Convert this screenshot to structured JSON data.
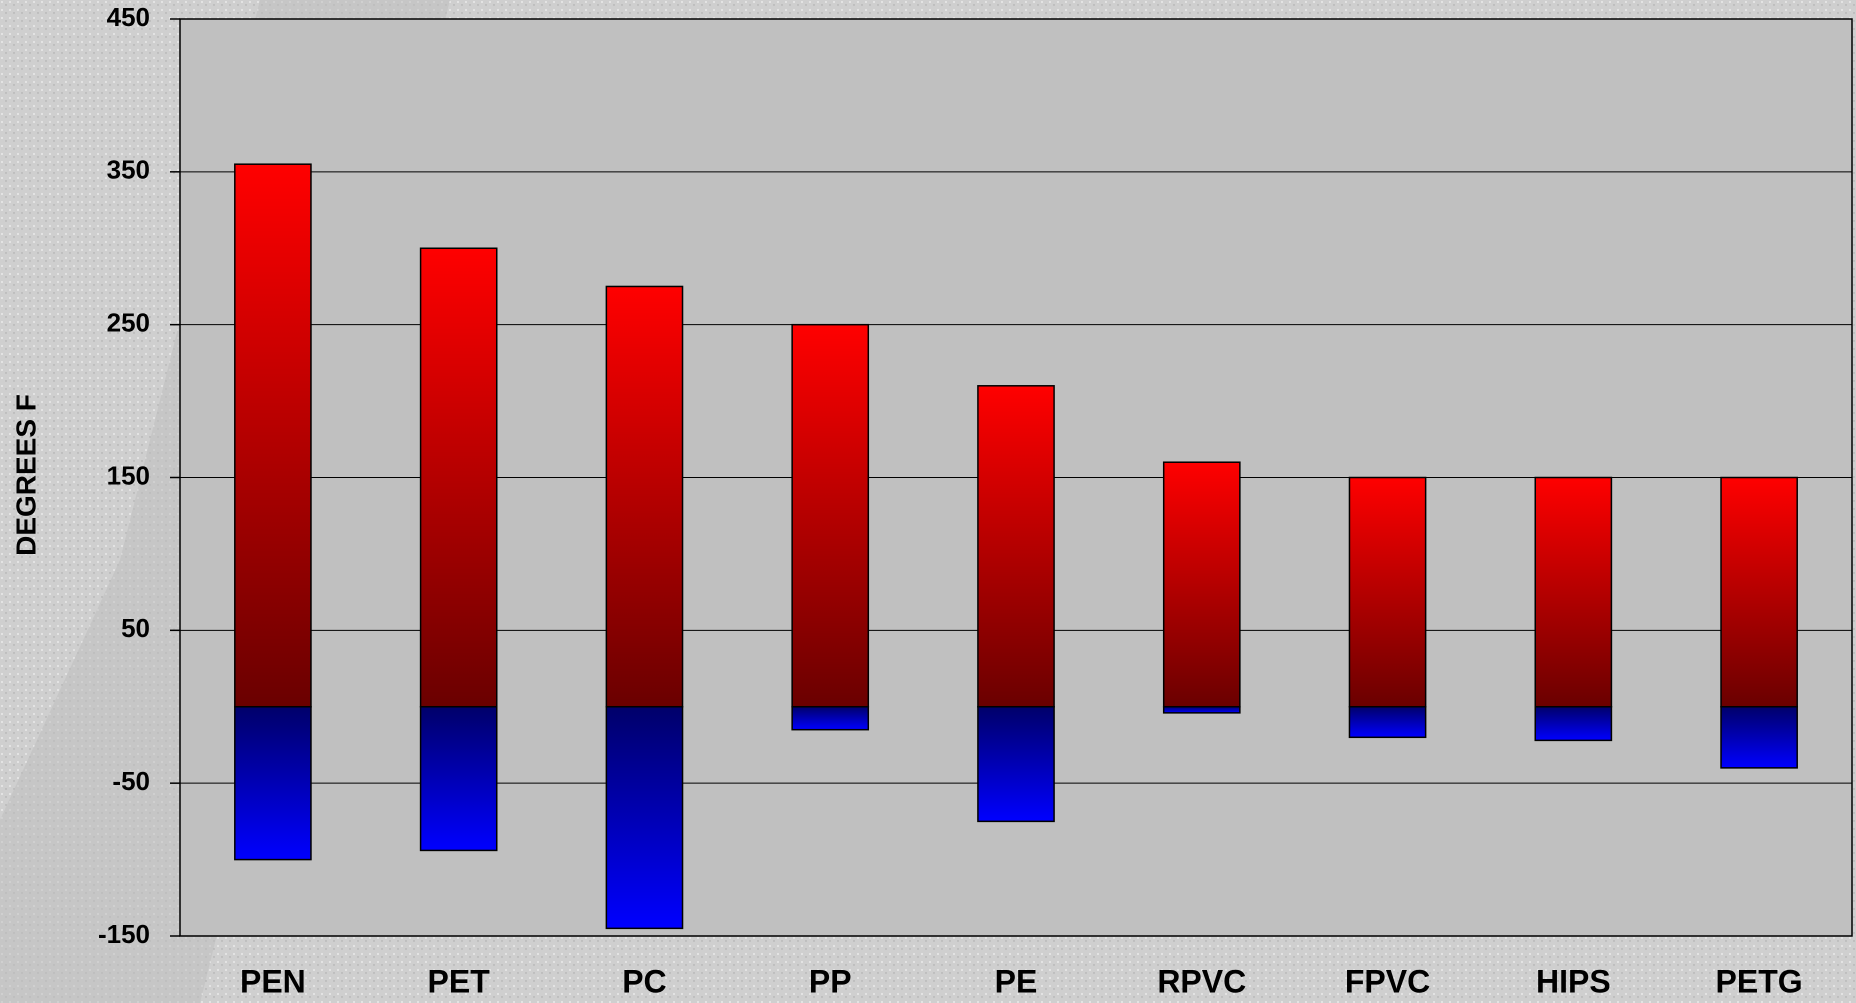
{
  "chart_data": {
    "type": "bar",
    "y_label": "DEGREES F",
    "categories": [
      "PEN",
      "PET",
      "PC",
      "PP",
      "PE",
      "RPVC",
      "FPVC",
      "HIPS",
      "PETG"
    ],
    "series": [
      {
        "color": "#ff0000",
        "values": [
          355,
          300,
          275,
          250,
          210,
          160,
          150,
          150,
          150
        ]
      },
      {
        "color": "#0000ff",
        "values": [
          -100,
          -94,
          -145,
          -15,
          -75,
          -4,
          -20,
          -22,
          -40
        ]
      }
    ],
    "ylim": [
      -150,
      450
    ],
    "yticks": [
      -150,
      -50,
      50,
      150,
      250,
      350,
      450
    ],
    "grid": true
  }
}
